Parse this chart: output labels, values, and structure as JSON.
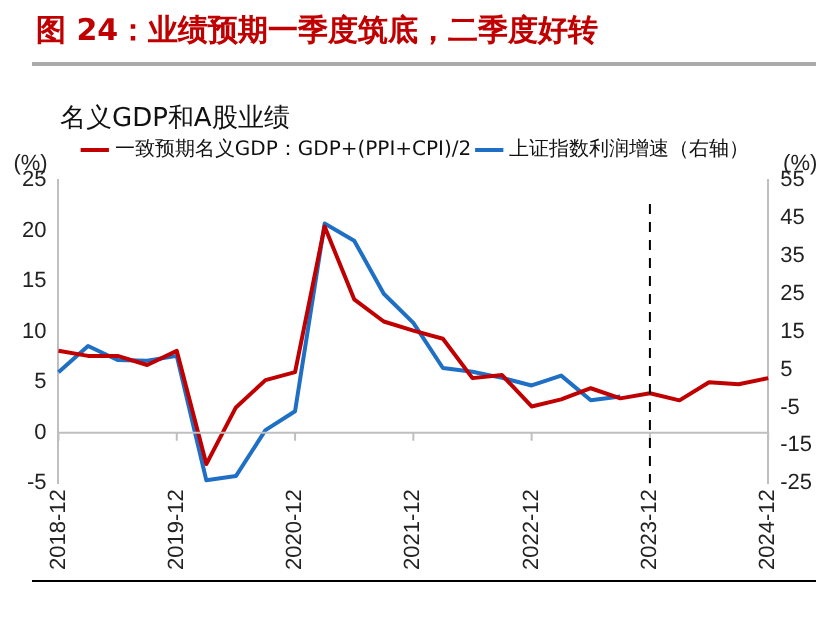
{
  "chart_data": {
    "type": "line",
    "title": "图 24：业绩预期一季度筑底，二季度好转",
    "subtitle": "名义GDP和A股业绩",
    "ylabel": "(%)",
    "y2label": "(%)",
    "categories": [
      "2018-12",
      null,
      null,
      null,
      "2019-12",
      null,
      null,
      null,
      "2020-12",
      null,
      null,
      null,
      "2021-12",
      null,
      null,
      null,
      "2022-12",
      null,
      null,
      null,
      "2023-12",
      null,
      null,
      null,
      "2024-12"
    ],
    "series": [
      {
        "name": "一致预期名义GDP：GDP+(PPI+CPI)/2",
        "color": "#c00000",
        "values": [
          8.1,
          7.6,
          7.6,
          6.7,
          8.1,
          -3.1,
          2.5,
          5.2,
          6.0,
          20.4,
          13.2,
          11.0,
          10.1,
          9.3,
          5.4,
          5.7,
          2.6,
          3.3,
          4.4,
          3.4,
          3.9,
          3.2,
          5.0,
          4.8,
          5.4
        ]
      },
      {
        "name": "上证指数利润增速（右轴）",
        "color": "#1f6fc5",
        "axis": "y2",
        "values": [
          4.3,
          11.2,
          7.5,
          7.3,
          8.6,
          -24.2,
          -23.1,
          -11,
          -6,
          43.5,
          39,
          25,
          17.3,
          5.4,
          4.4,
          2.8,
          0.8,
          3.4,
          -3.1,
          -2.1,
          null,
          null,
          null,
          null,
          null
        ]
      }
    ],
    "ylim": [
      -5,
      25
    ],
    "yticks": [
      -5,
      0,
      5,
      10,
      15,
      20,
      25
    ],
    "y2lim": [
      -25,
      55
    ],
    "y2ticks": [
      -25,
      -15,
      -5,
      5,
      15,
      25,
      35,
      45,
      55
    ],
    "ref_lines": [
      {
        "axis": "x",
        "value": "2023-12",
        "line_style": "dashed",
        "color": "#000000"
      }
    ],
    "legend": "top",
    "grid": false,
    "marker": "none",
    "line_style": "solid"
  }
}
